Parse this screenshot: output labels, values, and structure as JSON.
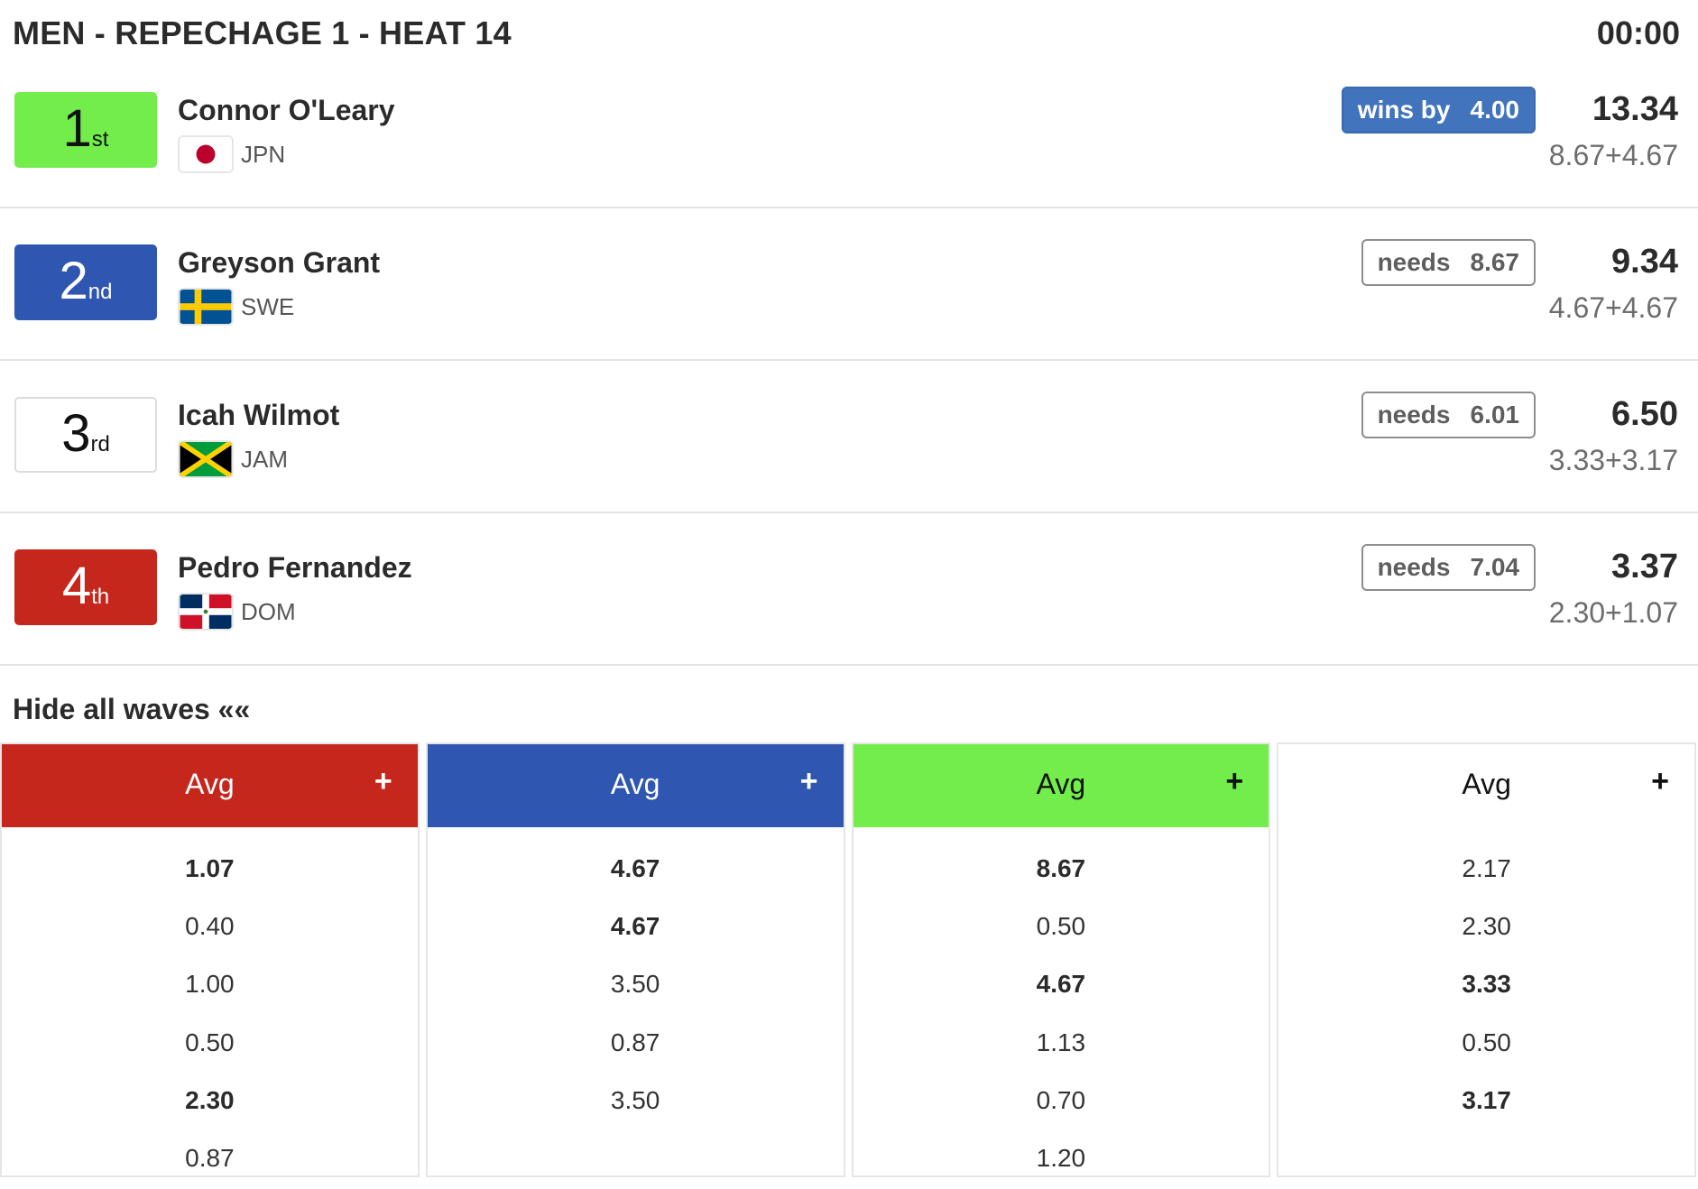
{
  "heat": {
    "title": "MEN - REPECHAGE 1 - HEAT 14",
    "timer": "00:00"
  },
  "athletes": [
    {
      "place": "1",
      "suffix": "st",
      "jersey_color": "#72ed4b",
      "place_text_color": "#111111",
      "name": "Connor O'Leary",
      "country": "JPN",
      "flag_icon": "japan-flag-icon",
      "status_label": "wins by",
      "status_value": "4.00",
      "status_type": "lead",
      "total": "13.34",
      "breakdown": "8.67+4.67"
    },
    {
      "place": "2",
      "suffix": "nd",
      "jersey_color": "#2f56b0",
      "place_text_color": "#ffffff",
      "name": "Greyson Grant",
      "country": "SWE",
      "flag_icon": "sweden-flag-icon",
      "status_label": "needs",
      "status_value": "8.67",
      "status_type": "needs",
      "total": "9.34",
      "breakdown": "4.67+4.67"
    },
    {
      "place": "3",
      "suffix": "rd",
      "jersey_color": "#ffffff",
      "place_text_color": "#111111",
      "name": "Icah Wilmot",
      "country": "JAM",
      "flag_icon": "jamaica-flag-icon",
      "status_label": "needs",
      "status_value": "6.01",
      "status_type": "needs",
      "total": "6.50",
      "breakdown": "3.33+3.17"
    },
    {
      "place": "4",
      "suffix": "th",
      "jersey_color": "#c6271d",
      "place_text_color": "#ffffff",
      "name": "Pedro Fernandez",
      "country": "DOM",
      "flag_icon": "dominican-republic-flag-icon",
      "status_label": "needs",
      "status_value": "7.04",
      "status_type": "needs",
      "total": "3.37",
      "breakdown": "2.30+1.07"
    }
  ],
  "waves": {
    "toggle_label": "Hide all waves ««",
    "columns": [
      {
        "header": "Avg",
        "plus": "+",
        "color": "#c6271d",
        "text_color": "#ffffff",
        "scores": [
          {
            "value": "1.07",
            "counted": true
          },
          {
            "value": "0.40",
            "counted": false
          },
          {
            "value": "1.00",
            "counted": false
          },
          {
            "value": "0.50",
            "counted": false
          },
          {
            "value": "2.30",
            "counted": true
          },
          {
            "value": "0.87",
            "counted": false
          }
        ]
      },
      {
        "header": "Avg",
        "plus": "+",
        "color": "#2f56b0",
        "text_color": "#ffffff",
        "scores": [
          {
            "value": "4.67",
            "counted": true
          },
          {
            "value": "4.67",
            "counted": true
          },
          {
            "value": "3.50",
            "counted": false
          },
          {
            "value": "0.87",
            "counted": false
          },
          {
            "value": "3.50",
            "counted": false
          }
        ]
      },
      {
        "header": "Avg",
        "plus": "+",
        "color": "#72ed4b",
        "text_color": "#111111",
        "scores": [
          {
            "value": "8.67",
            "counted": true
          },
          {
            "value": "0.50",
            "counted": false
          },
          {
            "value": "4.67",
            "counted": true
          },
          {
            "value": "1.13",
            "counted": false
          },
          {
            "value": "0.70",
            "counted": false
          },
          {
            "value": "1.20",
            "counted": false
          }
        ]
      },
      {
        "header": "Avg",
        "plus": "+",
        "color": "#ffffff",
        "text_color": "#111111",
        "scores": [
          {
            "value": "2.17",
            "counted": false
          },
          {
            "value": "2.30",
            "counted": false
          },
          {
            "value": "3.33",
            "counted": true
          },
          {
            "value": "0.50",
            "counted": false
          },
          {
            "value": "3.17",
            "counted": true
          }
        ]
      }
    ]
  }
}
